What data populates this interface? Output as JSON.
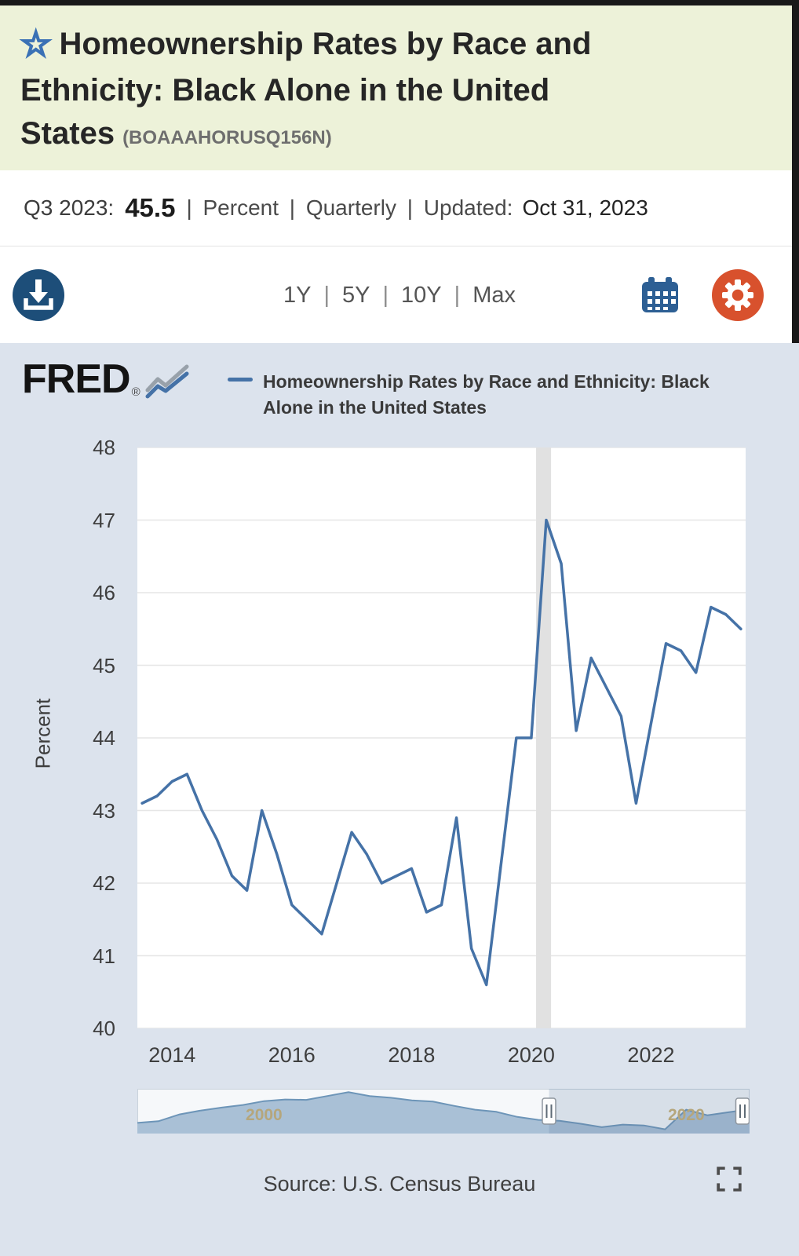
{
  "header": {
    "title": "Homeownership Rates by Race and Ethnicity: Black Alone in the United States",
    "series_id": "(BOAAAHORUSQ156N)"
  },
  "icons": {
    "star": "☆"
  },
  "observation": {
    "period": "Q3 2023:",
    "value": "45.5",
    "meta": "| Percent | Quarterly | Updated:",
    "date": "Oct 31, 2023"
  },
  "toolbar": {
    "ranges": [
      "1Y",
      "5Y",
      "10Y",
      "Max"
    ],
    "separator": "|"
  },
  "brand": {
    "name": "FRED",
    "reg": "®"
  },
  "legend": {
    "label": "Homeownership Rates by Race and Ethnicity: Black Alone in the United States"
  },
  "footer": {
    "source": "Source: U.S. Census Bureau"
  },
  "colors": {
    "accent_blue": "#4572a7",
    "header_bg": "#edf2d9",
    "download_blue": "#1d4e79",
    "settings_orange": "#d8512d",
    "calendar_blue": "#2d5f94",
    "selector_label_tan": "#b5a67c",
    "chart_bg": "#dce3ed"
  },
  "chart_data": {
    "main": {
      "type": "line",
      "title": "Homeownership Rates by Race and Ethnicity: Black Alone in the United States",
      "ylabel": "Percent",
      "frequency": "Quarterly",
      "ylim": [
        40,
        48
      ],
      "y_tick_step": 1,
      "xlim": [
        2013.42,
        2023.58
      ],
      "x_start": 2013.5,
      "x_step": 0.25,
      "x_ticks": [
        2014,
        2016,
        2018,
        2020,
        2022
      ],
      "recession_band": [
        2020.08,
        2020.33
      ],
      "grid": true,
      "line_color": "#4572a7",
      "periods": [
        "2013 Q3",
        "2013 Q4",
        "2014 Q1",
        "2014 Q2",
        "2014 Q3",
        "2014 Q4",
        "2015 Q1",
        "2015 Q2",
        "2015 Q3",
        "2015 Q4",
        "2016 Q1",
        "2016 Q2",
        "2016 Q3",
        "2016 Q4",
        "2017 Q1",
        "2017 Q2",
        "2017 Q3",
        "2017 Q4",
        "2018 Q1",
        "2018 Q2",
        "2018 Q3",
        "2018 Q4",
        "2019 Q1",
        "2019 Q2",
        "2019 Q3",
        "2019 Q4",
        "2020 Q1",
        "2020 Q2",
        "2020 Q3",
        "2020 Q4",
        "2021 Q1",
        "2021 Q2",
        "2021 Q3",
        "2021 Q4",
        "2022 Q1",
        "2022 Q2",
        "2022 Q3",
        "2022 Q4",
        "2023 Q1",
        "2023 Q2",
        "2023 Q3"
      ],
      "values": [
        43.1,
        43.2,
        43.4,
        43.5,
        43.0,
        42.6,
        42.1,
        41.9,
        43.0,
        42.4,
        41.7,
        41.5,
        41.3,
        42.0,
        42.7,
        42.4,
        42.0,
        42.1,
        42.2,
        41.6,
        41.7,
        42.9,
        41.1,
        40.6,
        42.3,
        44.0,
        44.0,
        47.0,
        46.4,
        44.1,
        45.1,
        44.7,
        44.3,
        43.1,
        44.2,
        45.3,
        45.2,
        44.9,
        45.8,
        45.7,
        45.5
      ]
    },
    "selector": {
      "type": "area",
      "ylim": [
        40,
        50.5
      ],
      "x_start": 1994,
      "x_step": 1,
      "values": [
        42.5,
        42.9,
        44.5,
        45.4,
        46.1,
        46.7,
        47.6,
        48.0,
        47.9,
        48.8,
        49.7,
        48.8,
        48.4,
        47.8,
        47.5,
        46.5,
        45.6,
        45.1,
        43.9,
        43.2,
        43.0,
        42.3,
        41.5,
        42.1,
        41.9,
        41.0,
        45.6,
        44.3,
        45.0,
        45.7
      ],
      "year_labels": [
        2000,
        2020
      ],
      "selected_range": [
        2013.5,
        2023
      ]
    }
  }
}
